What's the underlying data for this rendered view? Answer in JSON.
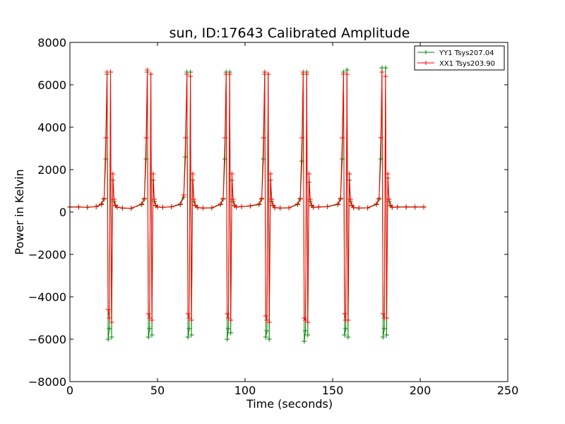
{
  "chart_data": {
    "type": "line",
    "title": "sun, ID:17643 Calibrated Amplitude",
    "xlabel": "Time (seconds)",
    "ylabel": "Power in Kelvin",
    "xlim": [
      0,
      250
    ],
    "ylim": [
      -8000,
      8000
    ],
    "xticks": [
      0,
      50,
      100,
      150,
      200,
      250
    ],
    "yticks": [
      -8000,
      -6000,
      -4000,
      -2000,
      0,
      2000,
      4000,
      6000,
      8000
    ],
    "xtick_labels": [
      "0",
      "50",
      "100",
      "150",
      "200",
      "250"
    ],
    "ytick_labels": [
      "−8000",
      "−6000",
      "−4000",
      "−2000",
      "0",
      "2000",
      "4000",
      "6000",
      "8000"
    ],
    "grid": false,
    "legend_position": "top-right",
    "marker": "plus",
    "series": [
      {
        "name": "YY1 Tsys207.04",
        "color": "#008000",
        "x": [
          0,
          5,
          10,
          15,
          18,
          19.5,
          20.5,
          21.2,
          21.8,
          22.5,
          23.2,
          23.8,
          24.5,
          25.2,
          26,
          27,
          30,
          35,
          41,
          42.5,
          43.5,
          44.2,
          44.8,
          45.5,
          46.2,
          46.8,
          47.5,
          48.2,
          49,
          50,
          53,
          58,
          63,
          65,
          66,
          66.8,
          67.4,
          68.1,
          68.8,
          69.4,
          70.1,
          70.8,
          71.6,
          73,
          76,
          81,
          86,
          87.5,
          88.5,
          89.2,
          89.8,
          90.5,
          91.2,
          91.8,
          92.5,
          93.2,
          94,
          95,
          98,
          103,
          108,
          109.5,
          110.5,
          111.2,
          111.8,
          112.5,
          113.2,
          113.8,
          114.5,
          115.2,
          116,
          117,
          120,
          125,
          130,
          131.5,
          132.5,
          133.2,
          133.8,
          134.5,
          135.2,
          135.8,
          136.5,
          137.2,
          138,
          139,
          142,
          147,
          153,
          154.5,
          155.5,
          156.2,
          156.8,
          157.5,
          158.2,
          158.8,
          159.5,
          160.2,
          161,
          162,
          165,
          170,
          175,
          176.5,
          177.5,
          178.2,
          178.8,
          179.5,
          180.2,
          180.8,
          181.5,
          182.2,
          183,
          184,
          187,
          192,
          197,
          202
        ],
        "y": [
          230,
          230,
          220,
          250,
          350,
          600,
          2500,
          6500,
          -6000,
          -5500,
          6600,
          -5900,
          1500,
          500,
          300,
          220,
          180,
          170,
          350,
          600,
          2500,
          6600,
          -5900,
          -5500,
          6500,
          -5800,
          1500,
          500,
          300,
          230,
          220,
          240,
          350,
          700,
          2600,
          6600,
          -5900,
          -5500,
          6600,
          -5800,
          1500,
          500,
          300,
          200,
          180,
          190,
          350,
          600,
          2500,
          6600,
          -6000,
          -5500,
          6600,
          -5700,
          1500,
          500,
          300,
          230,
          250,
          280,
          350,
          600,
          2500,
          6500,
          -5900,
          -5600,
          6500,
          -6000,
          1500,
          500,
          300,
          200,
          180,
          190,
          350,
          600,
          2400,
          6500,
          -6100,
          -5600,
          6600,
          -5800,
          1400,
          500,
          300,
          220,
          230,
          250,
          350,
          600,
          2500,
          6600,
          -5800,
          -5500,
          6700,
          -5900,
          1500,
          500,
          300,
          200,
          180,
          190,
          350,
          600,
          2500,
          6800,
          -5900,
          -5500,
          6800,
          -5800,
          1600,
          500,
          300,
          220,
          230,
          230,
          230,
          230
        ]
      },
      {
        "name": "XX1 Tsys203.90",
        "color": "#ff0000",
        "x": [
          0,
          5,
          10,
          15,
          18,
          19.5,
          20.5,
          21.2,
          21.8,
          22.5,
          23.2,
          23.8,
          24.5,
          25.2,
          26,
          27,
          30,
          35,
          41,
          42.5,
          43.5,
          44.2,
          44.8,
          45.5,
          46.2,
          46.8,
          47.5,
          48.2,
          49,
          50,
          53,
          58,
          63,
          65,
          66,
          66.8,
          67.4,
          68.1,
          68.8,
          69.4,
          70.1,
          70.8,
          71.6,
          73,
          76,
          81,
          86,
          87.5,
          88.5,
          89.2,
          89.8,
          90.5,
          91.2,
          91.8,
          92.5,
          93.2,
          94,
          95,
          98,
          103,
          108,
          109.5,
          110.5,
          111.2,
          111.8,
          112.5,
          113.2,
          113.8,
          114.5,
          115.2,
          116,
          117,
          120,
          125,
          130,
          131.5,
          132.5,
          133.2,
          133.8,
          134.5,
          135.2,
          135.8,
          136.5,
          137.2,
          138,
          139,
          142,
          147,
          153,
          154.5,
          155.5,
          156.2,
          156.8,
          157.5,
          158.2,
          158.8,
          159.5,
          160.2,
          161,
          162,
          165,
          170,
          175,
          176.5,
          177.5,
          178.2,
          178.8,
          179.5,
          180.2,
          180.8,
          181.5,
          182.2,
          183,
          184,
          187,
          192,
          197,
          202
        ],
        "y": [
          240,
          240,
          230,
          260,
          380,
          650,
          3500,
          6600,
          -4600,
          -5000,
          6600,
          -5200,
          1800,
          600,
          320,
          230,
          190,
          180,
          380,
          650,
          3500,
          6700,
          -4800,
          -5000,
          6500,
          -5100,
          1800,
          600,
          320,
          240,
          230,
          250,
          380,
          800,
          3500,
          6500,
          -4800,
          -5000,
          6400,
          -5100,
          1800,
          600,
          320,
          210,
          190,
          200,
          380,
          650,
          3500,
          6500,
          -4800,
          -5000,
          6500,
          -5100,
          1800,
          600,
          320,
          240,
          260,
          290,
          380,
          650,
          3500,
          6600,
          -4900,
          -5100,
          6500,
          -5200,
          1800,
          600,
          320,
          210,
          190,
          200,
          380,
          650,
          3500,
          6600,
          -5000,
          -5100,
          6500,
          -5200,
          1800,
          600,
          320,
          230,
          240,
          260,
          380,
          650,
          3500,
          6500,
          -4800,
          -5100,
          6500,
          -5100,
          1800,
          600,
          320,
          210,
          190,
          200,
          380,
          650,
          3500,
          6600,
          -4800,
          -5000,
          6400,
          -5000,
          1800,
          600,
          320,
          230,
          240,
          240,
          240,
          240
        ]
      }
    ]
  }
}
